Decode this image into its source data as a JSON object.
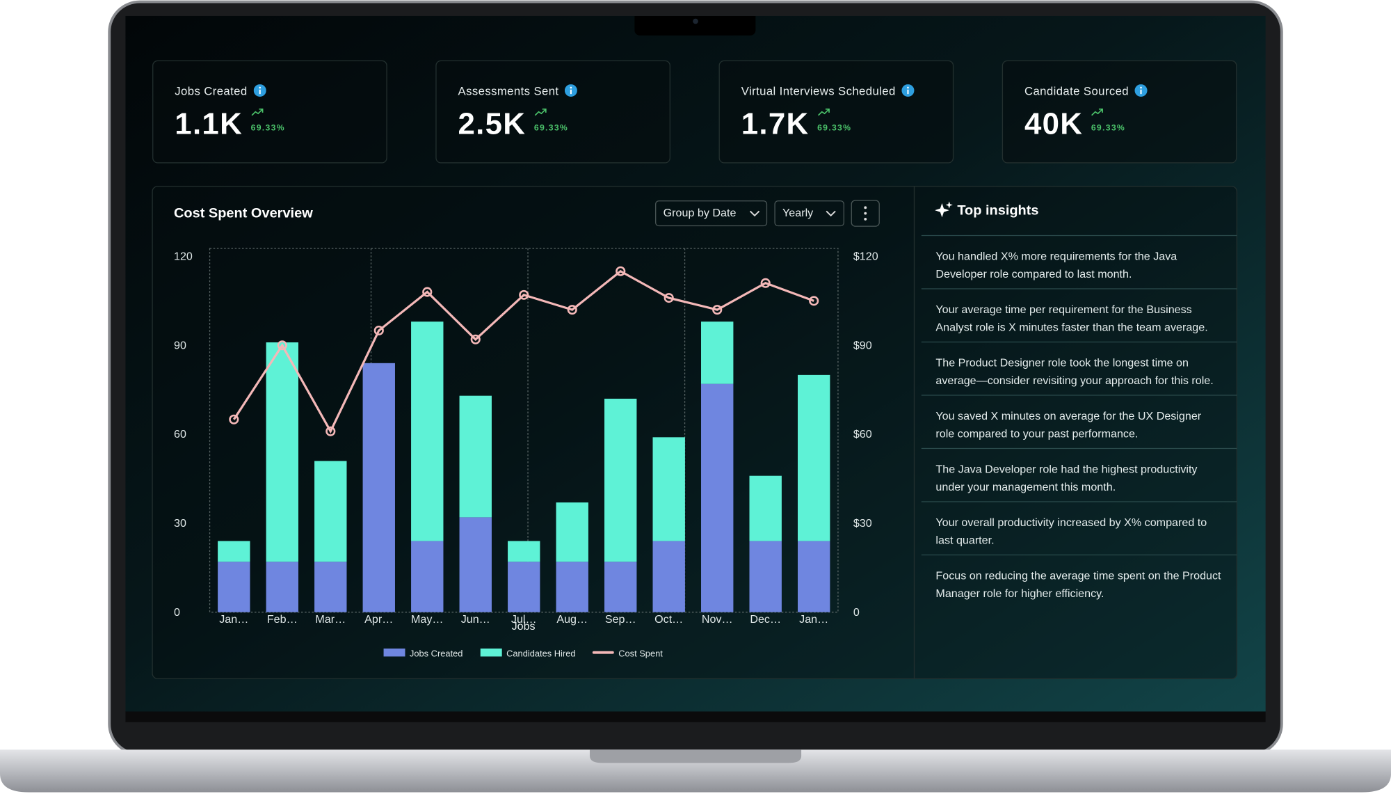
{
  "kpis": [
    {
      "label": "Jobs Created",
      "value": "1.1K",
      "change": "69.33%"
    },
    {
      "label": "Assessments Sent",
      "value": "2.5K",
      "change": "69.33%"
    },
    {
      "label": "Virtual Interviews Scheduled",
      "value": "1.7K",
      "change": "69.33%"
    },
    {
      "label": "Candidate Sourced",
      "value": "40K",
      "change": "69.33%"
    }
  ],
  "chart_data": {
    "type": "bar",
    "stacked": true,
    "title": "Cost Spent Overview",
    "controls": [
      "Group by Date",
      "Yearly"
    ],
    "xlabel": "Jobs",
    "categories": [
      "Jan…",
      "Feb…",
      "Mar…",
      "Apr…",
      "May…",
      "Jun…",
      "Jul…",
      "Aug…",
      "Sep…",
      "Oct…",
      "Nov…",
      "Dec…",
      "Jan…"
    ],
    "series": [
      {
        "name": "Jobs Created",
        "color": "#6f86e0",
        "values": [
          17,
          17,
          17,
          84,
          24,
          32,
          17,
          17,
          17,
          24,
          77,
          24,
          24
        ]
      },
      {
        "name": "Candidates Hired",
        "color": "#5ef2d6",
        "values": [
          7,
          74,
          34,
          0,
          74,
          41,
          7,
          20,
          55,
          35,
          21,
          22,
          56
        ]
      },
      {
        "name": "Cost Spent",
        "color": "#f4b8b8",
        "type": "line",
        "axis": "y2",
        "values": [
          65,
          90,
          61,
          95,
          108,
          92,
          107,
          102,
          115,
          106,
          102,
          111,
          105
        ]
      }
    ],
    "ylim": [
      0,
      120
    ],
    "yticks": [
      0,
      30,
      60,
      90,
      120
    ],
    "y2lim": [
      0,
      120
    ],
    "y2ticks": [
      0,
      {
        "value": 30,
        "label": "$30"
      },
      {
        "value": 60,
        "label": "$60"
      },
      {
        "value": 90,
        "label": "$90"
      },
      {
        "value": 120,
        "label": "$120"
      }
    ],
    "grid": true
  },
  "insights": {
    "title": "Top insights",
    "items": [
      "You handled X% more requirements for the Java Developer role compared to last month.",
      "Your average time per requirement for the Business Analyst role is X minutes faster than the team average.",
      "The Product Designer role took the longest time on average—consider revisiting your approach for this role.",
      "You saved X minutes on average for the UX Designer role compared to your past performance.",
      "The Java Developer role had the highest productivity under your management this month.",
      "Your overall productivity increased by X% compared to last quarter.",
      "Focus on reducing the average time spent on the Product Manager role for higher efficiency."
    ]
  }
}
